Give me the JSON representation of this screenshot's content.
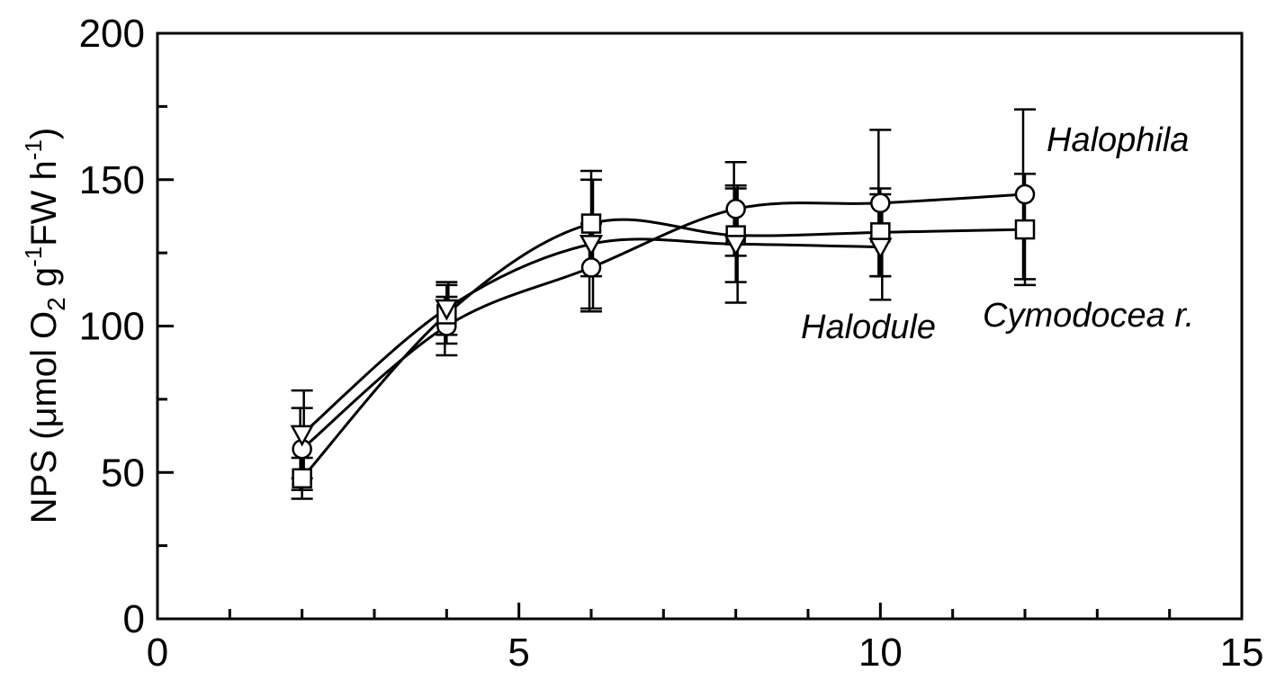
{
  "chart_data": {
    "type": "line",
    "title": "",
    "xlabel": "",
    "ylabel": {
      "prefix": "NPS (μmol O",
      "o2_sub": "2",
      "g": " g",
      "g_sup": "-1",
      "fw": "FW h",
      "h_sup": "-1",
      "suffix": ")"
    },
    "xlim": [
      0,
      15
    ],
    "ylim": [
      0,
      200
    ],
    "x_ticks": [
      0,
      5,
      10,
      15
    ],
    "y_ticks": [
      0,
      50,
      100,
      150,
      200
    ],
    "x_minor_step": 1,
    "y_minor_step": 25,
    "grid": false,
    "legend": "none",
    "x": [
      2,
      4,
      6,
      8,
      10,
      12
    ],
    "series": [
      {
        "name": "Halophila",
        "marker": "circle",
        "x": [
          2,
          4,
          6,
          8,
          10,
          12
        ],
        "values": [
          58,
          100,
          120,
          140,
          142,
          145
        ],
        "errors": [
          14,
          10,
          15,
          16,
          25,
          29
        ]
      },
      {
        "name": "Cymodocea r.",
        "marker": "square",
        "x": [
          2,
          4,
          6,
          8,
          10,
          12
        ],
        "values": [
          48,
          104,
          135,
          131,
          132,
          133
        ],
        "errors": [
          7,
          10,
          18,
          16,
          15,
          19
        ]
      },
      {
        "name": "Halodule",
        "marker": "triangle-down",
        "x": [
          2,
          4,
          6,
          8,
          10
        ],
        "values": [
          63,
          106,
          128,
          128,
          127
        ],
        "errors": [
          15,
          9,
          22,
          20,
          18
        ]
      }
    ],
    "annotations": [
      {
        "text": "Halophila",
        "series": "Halophila"
      },
      {
        "text": "Cymodocea r.",
        "series": "Cymodocea r."
      },
      {
        "text": "Halodule",
        "series": "Halodule"
      }
    ]
  }
}
